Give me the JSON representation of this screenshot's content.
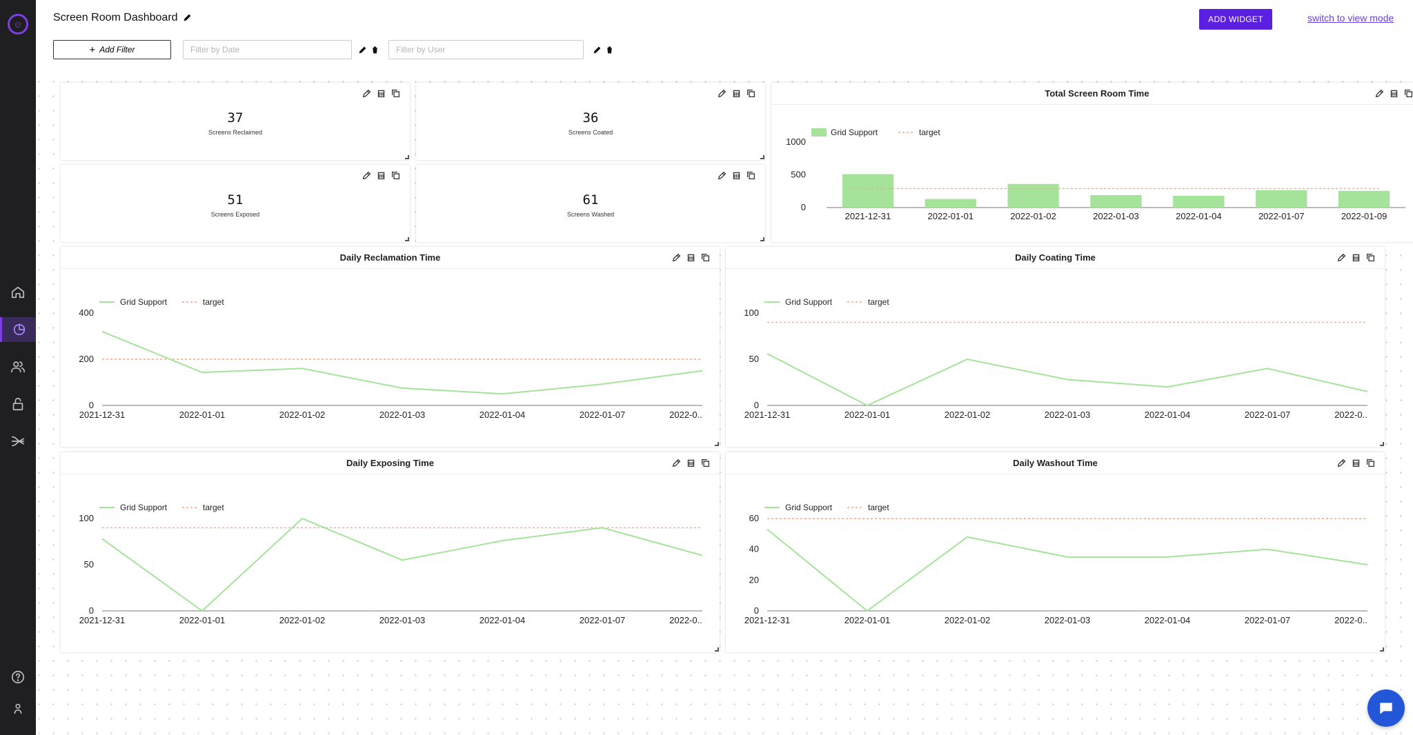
{
  "app": {
    "title": "Screen Room Dashboard"
  },
  "toolbar": {
    "add_widget": "ADD WIDGET",
    "view_mode": "switch to view mode",
    "add_filter": "Add Filter"
  },
  "filters": {
    "date_placeholder": "Filter by Date",
    "user_placeholder": "Filter by User"
  },
  "sidebar": {
    "items": [
      "home-icon",
      "dashboard-icon",
      "users-icon",
      "lock-icon",
      "routing-icon"
    ],
    "bottom": [
      "help-icon",
      "profile-icon"
    ]
  },
  "colors": {
    "accent": "#5b1fe0",
    "series": "#a5e29a",
    "target": "#f3a98a"
  },
  "kpis": [
    {
      "value": "37",
      "label": "Screens Reclaimed"
    },
    {
      "value": "36",
      "label": "Screens Coated"
    },
    {
      "value": "51",
      "label": "Screens Exposed"
    },
    {
      "value": "61",
      "label": "Screens Washed"
    }
  ],
  "chart_data": [
    {
      "type": "bar",
      "title": "Total Screen Room Time",
      "categories": [
        "2021-12-31",
        "2022-01-01",
        "2022-01-02",
        "2022-01-03",
        "2022-01-04",
        "2022-01-07",
        "2022-01-09"
      ],
      "series": [
        {
          "name": "Grid Support",
          "values": [
            510,
            130,
            360,
            190,
            180,
            265,
            255
          ]
        }
      ],
      "target": {
        "name": "target",
        "value": 290
      },
      "yticks": [
        "0",
        "500",
        "1000"
      ],
      "ylim": [
        0,
        1000
      ]
    },
    {
      "type": "line",
      "title": "Daily Reclamation Time",
      "categories": [
        "2021-12-31",
        "2022-01-01",
        "2022-01-02",
        "2022-01-03",
        "2022-01-04",
        "2022-01-07",
        "2022-0.."
      ],
      "series": [
        {
          "name": "Grid Support",
          "values": [
            320,
            143,
            160,
            75,
            50,
            92,
            150
          ]
        }
      ],
      "target": {
        "name": "target",
        "value": 200
      },
      "yticks": [
        "0",
        "200",
        "400"
      ],
      "ylim": [
        0,
        400
      ]
    },
    {
      "type": "line",
      "title": "Daily Coating Time",
      "categories": [
        "2021-12-31",
        "2022-01-01",
        "2022-01-02",
        "2022-01-03",
        "2022-01-04",
        "2022-01-07",
        "2022-0.."
      ],
      "series": [
        {
          "name": "Grid Support",
          "values": [
            56,
            0,
            50,
            28,
            20,
            40,
            15
          ]
        }
      ],
      "target": {
        "name": "target",
        "value": 90
      },
      "yticks": [
        "0",
        "50",
        "100"
      ],
      "ylim": [
        0,
        100
      ]
    },
    {
      "type": "line",
      "title": "Daily Exposing Time",
      "categories": [
        "2021-12-31",
        "2022-01-01",
        "2022-01-02",
        "2022-01-03",
        "2022-01-04",
        "2022-01-07",
        "2022-0.."
      ],
      "series": [
        {
          "name": "Grid Support",
          "values": [
            78,
            0,
            100,
            55,
            76,
            90,
            60
          ]
        }
      ],
      "target": {
        "name": "target",
        "value": 90
      },
      "yticks": [
        "0",
        "50",
        "100"
      ],
      "ylim": [
        0,
        100
      ]
    },
    {
      "type": "line",
      "title": "Daily Washout Time",
      "categories": [
        "2021-12-31",
        "2022-01-01",
        "2022-01-02",
        "2022-01-03",
        "2022-01-04",
        "2022-01-07",
        "2022-0.."
      ],
      "series": [
        {
          "name": "Grid Support",
          "values": [
            53,
            0,
            48,
            35,
            35,
            40,
            30
          ]
        }
      ],
      "target": {
        "name": "target",
        "value": 60
      },
      "yticks": [
        "0",
        "20",
        "40",
        "60"
      ],
      "ylim": [
        0,
        60
      ]
    }
  ]
}
